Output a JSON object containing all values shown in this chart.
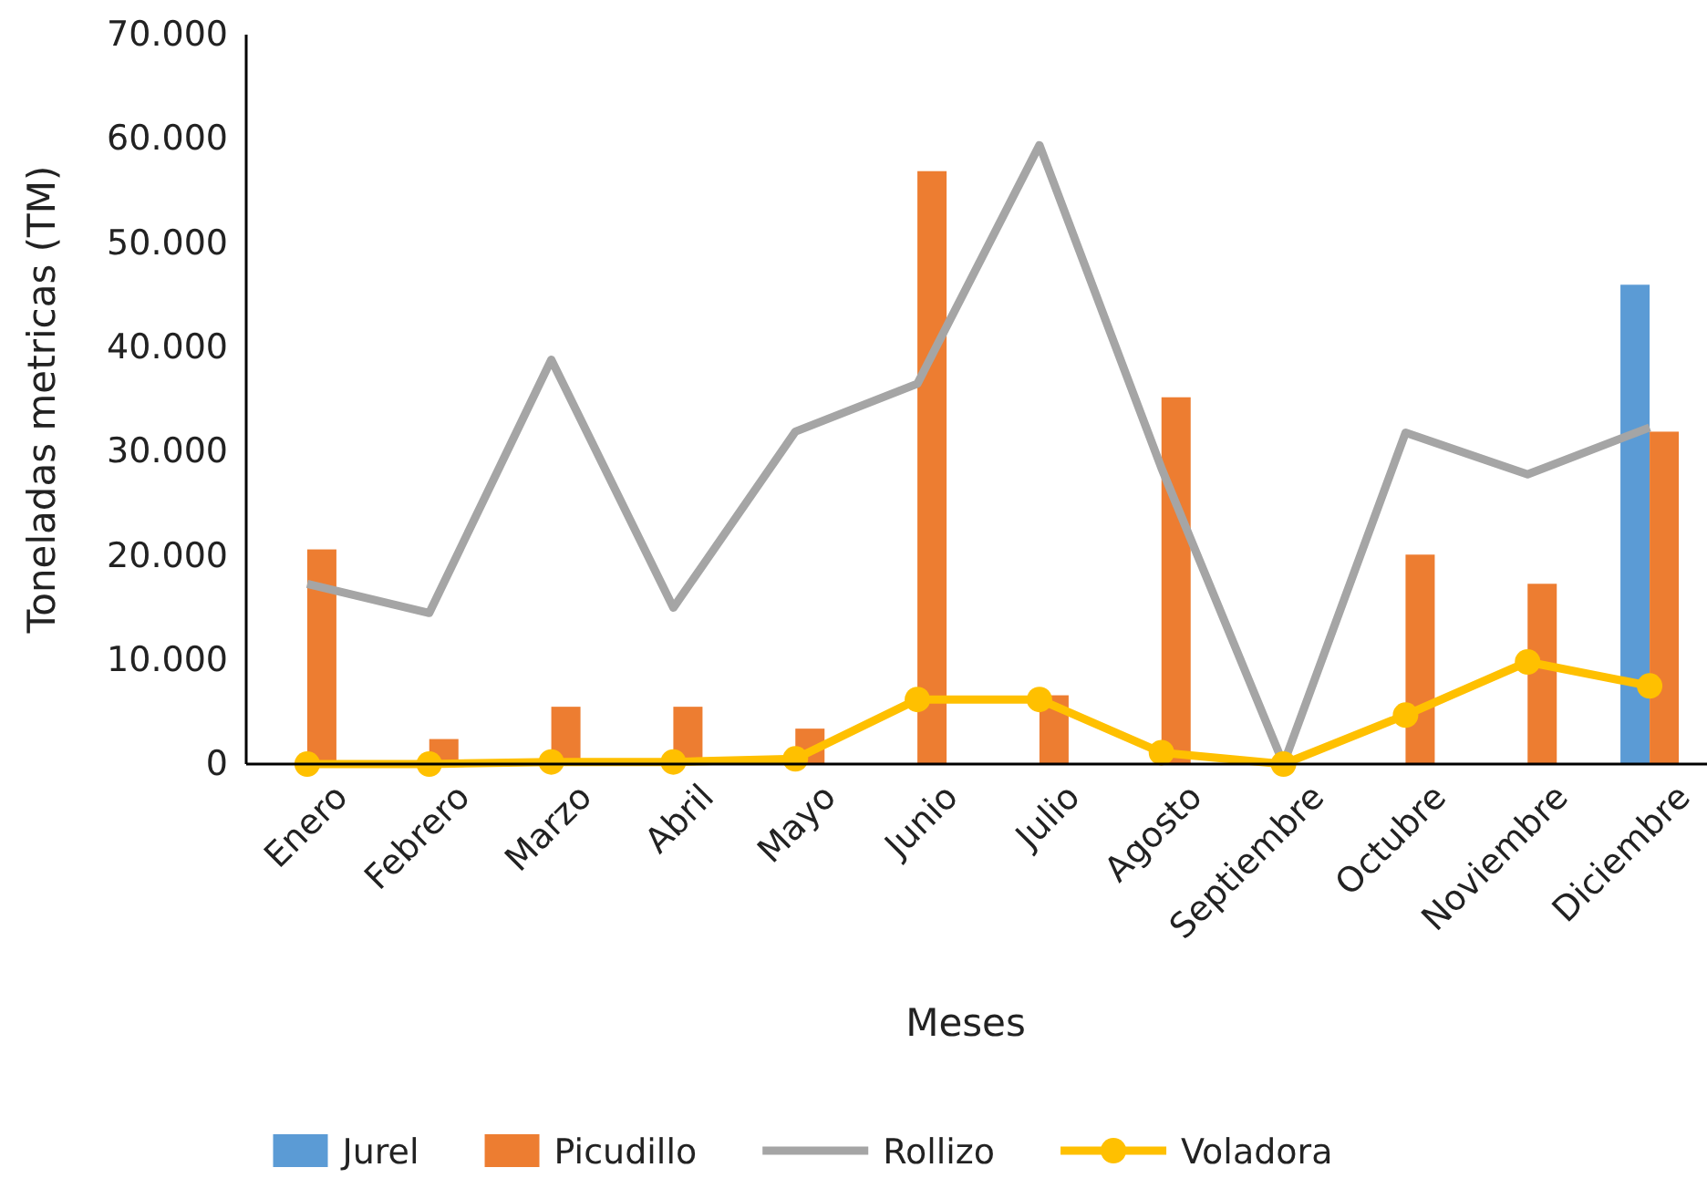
{
  "chart_data": {
    "type": "bar",
    "xlabel": "Meses",
    "ylabel": "Toneladas metricas (TM)",
    "categories": [
      "Enero",
      "Febrero",
      "Marzo",
      "Abril",
      "Mayo",
      "Junio",
      "Julio",
      "Agosto",
      "Septiembre",
      "Octubre",
      "Noviembre",
      "Diciembre"
    ],
    "series": [
      {
        "name": "Jurel",
        "color": "#5b9bd5",
        "values": [
          0,
          0,
          0,
          0,
          0,
          0,
          0,
          0,
          0,
          0,
          0,
          46000
        ]
      },
      {
        "name": "Picudillo",
        "color": "#ed7d31",
        "values": [
          20600,
          2400,
          5500,
          5500,
          3400,
          56900,
          6600,
          35200,
          0,
          20100,
          17300,
          31900
        ]
      },
      {
        "name": "Rollizo",
        "type": "line",
        "color": "#a5a5a5",
        "marker": "none",
        "values": [
          17300,
          14500,
          38800,
          15000,
          31900,
          36500,
          59400,
          28400,
          0,
          31800,
          27800,
          32300
        ]
      },
      {
        "name": "Voladora",
        "type": "line",
        "color": "#ffc000",
        "marker": "circle",
        "values": [
          0,
          0,
          200,
          200,
          500,
          6200,
          6200,
          1100,
          0,
          4700,
          9800,
          7500
        ]
      }
    ],
    "ylim": [
      0,
      70000
    ],
    "yticks": [
      {
        "value": 0,
        "label": "0"
      },
      {
        "value": 10000,
        "label": "10.000"
      },
      {
        "value": 20000,
        "label": "20.000"
      },
      {
        "value": 30000,
        "label": "30.000"
      },
      {
        "value": 40000,
        "label": "40.000"
      },
      {
        "value": 50000,
        "label": "50.000"
      },
      {
        "value": 60000,
        "label": "60.000"
      },
      {
        "value": 70000,
        "label": "70.000"
      }
    ],
    "grid": false,
    "legend": "bottom"
  }
}
